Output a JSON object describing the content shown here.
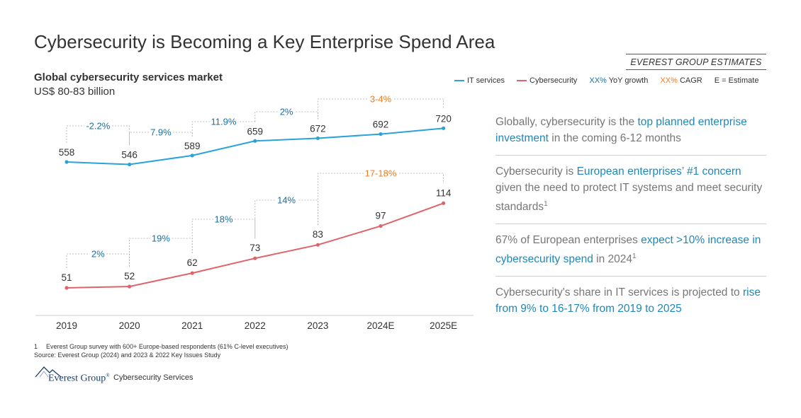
{
  "header": {
    "title": "Cybersecurity is Becoming a Key Enterprise Spend Area",
    "estimates_tag": "EVEREST GROUP ESTIMATES",
    "subtitle": "Global cybersecurity services market",
    "unit": "US$ 80-83 billion"
  },
  "legend": {
    "it_services": "IT services",
    "cybersecurity": "Cybersecurity",
    "yoy_marker": "XX%",
    "yoy_label": "YoY growth",
    "cagr_marker": "XX%",
    "cagr_label": "CAGR",
    "estimate_note": "E = Estimate"
  },
  "colors": {
    "it_services": "#29a3da",
    "cybersecurity": "#e0636a",
    "yoy": "#1a6fa4",
    "cagr": "#f07d1e",
    "highlight": "#1f88b8"
  },
  "chart_data": {
    "type": "line",
    "title": "Global cybersecurity services market",
    "categories": [
      "2019",
      "2020",
      "2021",
      "2022",
      "2023",
      "2024E",
      "2025E"
    ],
    "series": [
      {
        "name": "IT services",
        "values": [
          558,
          546,
          589,
          659,
          672,
          692,
          720
        ],
        "yoy_growth": [
          "-2.2%",
          "7.9%",
          "11.9%",
          "2%"
        ],
        "cagr": "3-4%"
      },
      {
        "name": "Cybersecurity",
        "values": [
          51,
          52,
          62,
          73,
          83,
          97,
          114
        ],
        "yoy_growth": [
          "2%",
          "19%",
          "18%",
          "14%"
        ],
        "cagr": "17-18%"
      }
    ]
  },
  "insights": [
    {
      "parts": [
        {
          "t": "Globally, cybersecurity is the ",
          "hl": false
        },
        {
          "t": "top planned enterprise investment",
          "hl": true
        },
        {
          "t": " in the coming 6-12 months",
          "hl": false
        }
      ]
    },
    {
      "parts": [
        {
          "t": "Cybersecurity is ",
          "hl": false
        },
        {
          "t": "European enterprises’ #1 concern",
          "hl": true
        },
        {
          "t": " given the need to protect IT systems and meet security standards",
          "hl": false
        }
      ],
      "sup": "1"
    },
    {
      "parts": [
        {
          "t": "67% of European enterprises ",
          "hl": false
        },
        {
          "t": "expect >10% increase in cybersecurity spend",
          "hl": true
        },
        {
          "t": " in 2024",
          "hl": false
        }
      ],
      "sup": "1"
    },
    {
      "parts": [
        {
          "t": "Cybersecurity's share in IT services is projected to ",
          "hl": false
        },
        {
          "t": "rise from 9% to 16-17% from 2019 to 2025",
          "hl": true
        }
      ]
    }
  ],
  "footnotes": {
    "note_number": "1",
    "note_text": "Everest Group survey with 600+ Europe-based respondents (61% C-level executives)",
    "source": "Source: Everest Group (2024) and 2023 & 2022 Key Issues Study"
  },
  "footer": {
    "brand": "Everest Group",
    "brand_mark": "®",
    "practice": "Cybersecurity Services"
  }
}
